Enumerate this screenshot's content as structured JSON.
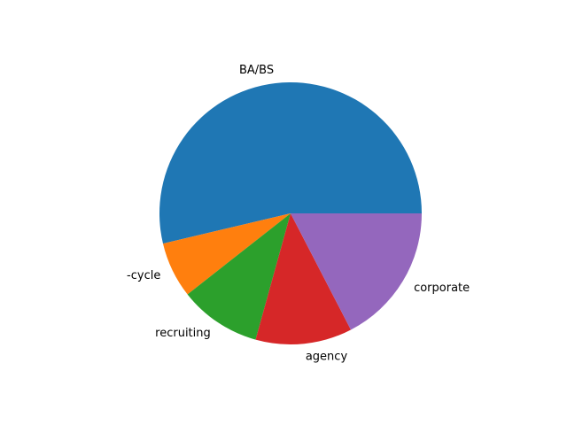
{
  "chart_data": {
    "type": "pie",
    "start_angle_deg": 0,
    "direction": "counterclockwise",
    "title": "",
    "legend": "none",
    "slices": [
      {
        "label": "BA/BS",
        "value": 53.7,
        "color": "#1f77b4"
      },
      {
        "label": "-cycle",
        "value": 6.9,
        "color": "#ff7f0e"
      },
      {
        "label": "recruiting",
        "value": 10.1,
        "color": "#2ca02c"
      },
      {
        "label": "agency",
        "value": 11.9,
        "color": "#d62728"
      },
      {
        "label": "corporate",
        "value": 17.4,
        "color": "#9467bd"
      }
    ]
  }
}
